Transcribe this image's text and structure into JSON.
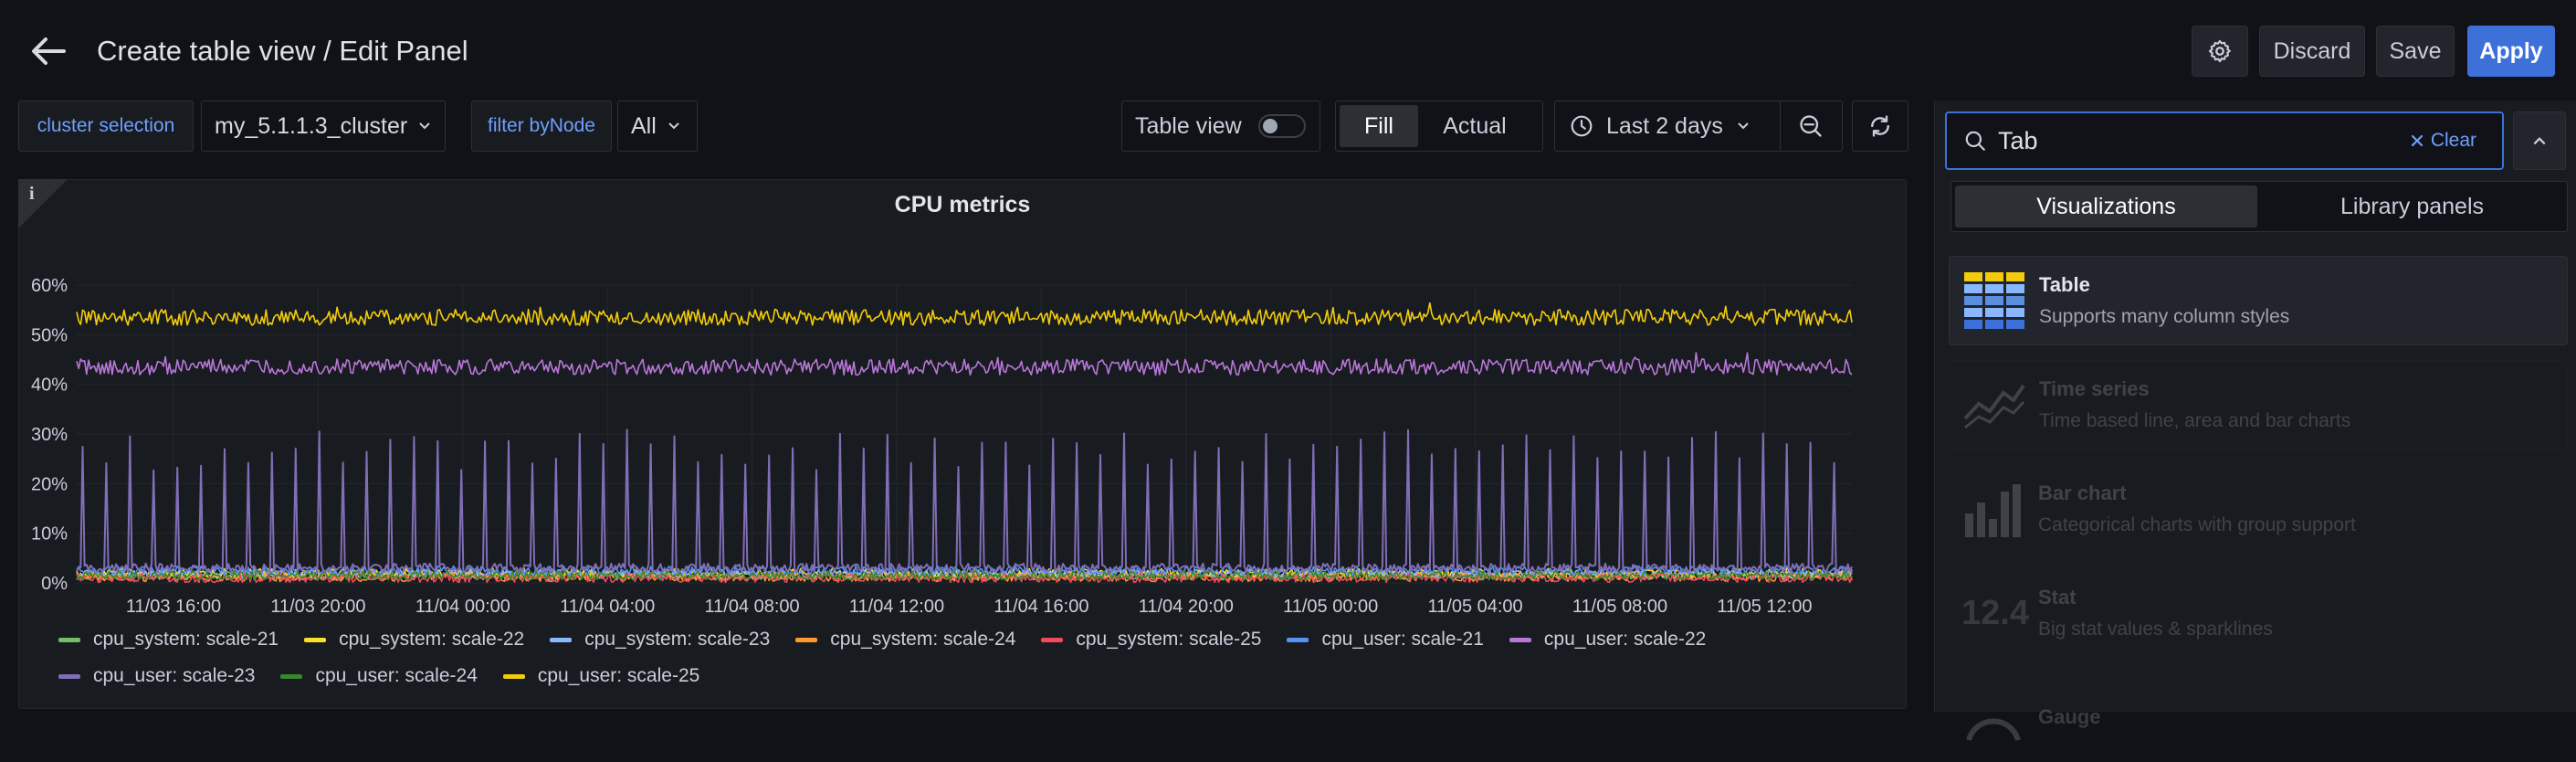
{
  "header": {
    "title": "Create table view / Edit Panel",
    "discard_label": "Discard",
    "save_label": "Save",
    "apply_label": "Apply"
  },
  "variables": [
    {
      "label": "cluster selection",
      "value": "my_5.1.1.3_cluster"
    },
    {
      "label": "filter byNode",
      "value": "All"
    }
  ],
  "toolbar": {
    "table_view_label": "Table view",
    "table_view_on": false,
    "fill_label": "Fill",
    "actual_label": "Actual",
    "time_range": "Last 2 days"
  },
  "panel": {
    "title": "CPU metrics",
    "info_icon": "info-icon"
  },
  "chart_data": {
    "type": "line",
    "ylim": [
      0,
      60
    ],
    "y_ticks": [
      "0%",
      "10%",
      "20%",
      "30%",
      "40%",
      "50%",
      "60%"
    ],
    "x_ticks": [
      "11/03 16:00",
      "11/03 20:00",
      "11/04 00:00",
      "11/04 04:00",
      "11/04 08:00",
      "11/04 12:00",
      "11/04 16:00",
      "11/04 20:00",
      "11/05 00:00",
      "11/05 04:00",
      "11/05 08:00",
      "11/05 12:00"
    ],
    "grid": true,
    "legend_placement": "bottom",
    "series": [
      {
        "name": "cpu_system: scale-21",
        "color": "#73bf69",
        "level": 1.5
      },
      {
        "name": "cpu_system: scale-22",
        "color": "#fade2a",
        "level": 2.0
      },
      {
        "name": "cpu_system: scale-23",
        "color": "#8ab8ff",
        "level": 1.8
      },
      {
        "name": "cpu_system: scale-24",
        "color": "#ff9830",
        "level": 1.2
      },
      {
        "name": "cpu_system: scale-25",
        "color": "#f2495c",
        "level": 1.0
      },
      {
        "name": "cpu_user: scale-21",
        "color": "#5794f2",
        "level": 2.5
      },
      {
        "name": "cpu_user: scale-22",
        "color": "#b877d9",
        "level": 43.5
      },
      {
        "name": "cpu_user: scale-23",
        "color": "#806eb7",
        "level": 3.0,
        "spikes_to": 30
      },
      {
        "name": "cpu_user: scale-24",
        "color": "#37872d",
        "level": 1.5
      },
      {
        "name": "cpu_user: scale-25",
        "color": "#f2cc0c",
        "level": 53.5
      }
    ]
  },
  "sidebar": {
    "search_value": "Tab",
    "clear_label": "Clear",
    "tabs": [
      "Visualizations",
      "Library panels"
    ],
    "visualizations": [
      {
        "title": "Table",
        "description": "Supports many column styles",
        "icon": "table-icon",
        "enabled": true
      },
      {
        "title": "Time series",
        "description": "Time based line, area and bar charts",
        "icon": "timeseries-icon",
        "enabled": false
      },
      {
        "title": "Bar chart",
        "description": "Categorical charts with group support",
        "icon": "barchart-icon",
        "enabled": false
      },
      {
        "title": "Stat",
        "description": "Big stat values & sparklines",
        "icon": "stat-icon",
        "stat_value": "12.4",
        "enabled": false
      },
      {
        "title": "Gauge",
        "description": "",
        "icon": "gauge-icon",
        "enabled": false
      }
    ]
  }
}
